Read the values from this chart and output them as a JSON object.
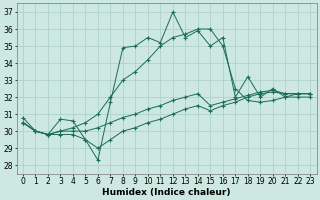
{
  "xlabel": "Humidex (Indice chaleur)",
  "xlim": [
    -0.5,
    23.5
  ],
  "ylim": [
    27.5,
    37.5
  ],
  "yticks": [
    28,
    29,
    30,
    31,
    32,
    33,
    34,
    35,
    36,
    37
  ],
  "xticks": [
    0,
    1,
    2,
    3,
    4,
    5,
    6,
    7,
    8,
    9,
    10,
    11,
    12,
    13,
    14,
    15,
    16,
    17,
    18,
    19,
    20,
    21,
    22,
    23
  ],
  "xtick_labels": [
    "0",
    "1",
    "2",
    "3",
    "4",
    "5",
    "6",
    "7",
    "8",
    "9",
    "10",
    "11",
    "12",
    "13",
    "14",
    "15",
    "16",
    "17",
    "18",
    "19",
    "20",
    "21",
    "22",
    "23"
  ],
  "bg_color": "#cce8e0",
  "grid_color": "#aacec6",
  "line_color": "#1a6b5a",
  "lines": [
    [
      30.8,
      30.0,
      29.8,
      30.7,
      30.6,
      29.5,
      28.3,
      31.7,
      34.9,
      35.0,
      35.5,
      35.2,
      37.0,
      35.5,
      35.9,
      35.0,
      35.5,
      32.0,
      33.2,
      32.0,
      32.5,
      32.0,
      32.0,
      32.0
    ],
    [
      30.5,
      30.0,
      29.8,
      30.0,
      30.2,
      30.5,
      31.0,
      32.0,
      33.0,
      33.5,
      34.2,
      35.0,
      35.5,
      35.7,
      36.0,
      36.0,
      35.0,
      32.5,
      31.8,
      31.7,
      31.8,
      32.0,
      32.2,
      32.2
    ],
    [
      30.5,
      30.0,
      29.8,
      30.0,
      30.0,
      30.0,
      30.2,
      30.5,
      30.8,
      31.0,
      31.3,
      31.5,
      31.8,
      32.0,
      32.2,
      31.5,
      31.7,
      31.9,
      32.1,
      32.3,
      32.4,
      32.2,
      32.2,
      32.2
    ],
    [
      30.5,
      30.0,
      29.8,
      29.8,
      29.8,
      29.5,
      29.0,
      29.5,
      30.0,
      30.2,
      30.5,
      30.7,
      31.0,
      31.3,
      31.5,
      31.2,
      31.5,
      31.7,
      32.0,
      32.2,
      32.3,
      32.2,
      32.2,
      32.2
    ]
  ],
  "tick_fontsize": 5.5,
  "xlabel_fontsize": 6.5
}
